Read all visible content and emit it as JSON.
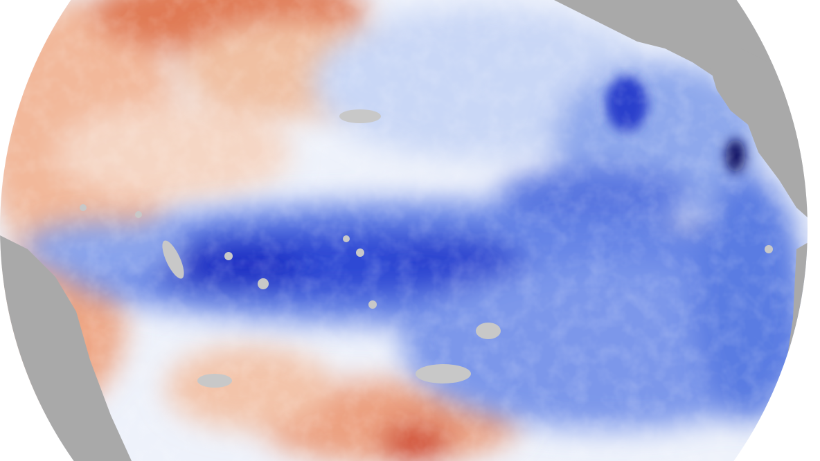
{
  "map": {
    "type": "orthographic globe, sea surface temperature anomaly",
    "colors": {
      "background": "#ffffff",
      "land": "#a9a9a9",
      "no_data": "#c8c8c8",
      "neutral": "#f4f6fb",
      "cool_light": "#b9cdf5",
      "cool": "#4a6fe0",
      "cool_strong": "#1b2fc4",
      "cool_extreme": "#0a1060",
      "warm_light": "#f6d2bd",
      "warm": "#e8906a",
      "warm_strong": "#d0462a"
    }
  }
}
